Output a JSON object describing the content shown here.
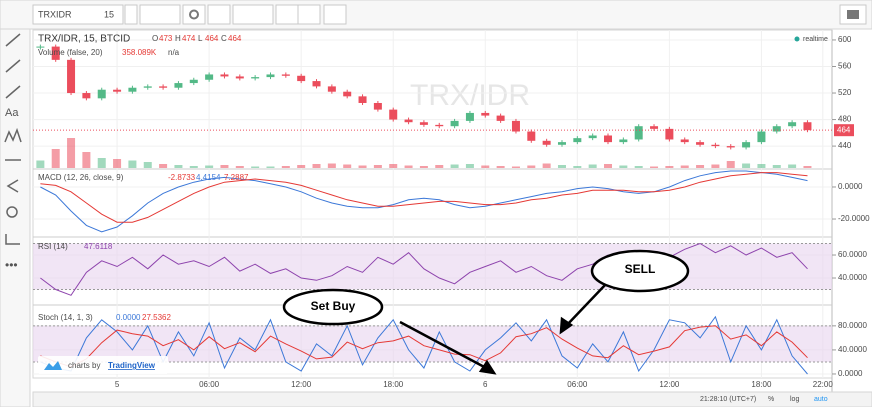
{
  "toolbar": {
    "symbol": "TRXIDR",
    "interval": "15"
  },
  "chart": {
    "type": "candlestick",
    "title": "TRX/IDR, 15, BTCID",
    "watermark": "TRX/IDR",
    "ohlc": [
      {
        "label": "O",
        "value": 473
      },
      {
        "label": "H",
        "value": 474
      },
      {
        "label": "L",
        "value": 464
      },
      {
        "label": "C",
        "value": 464
      }
    ],
    "realtime": "realtime",
    "last_price": 464,
    "x": [
      -5,
      -4,
      -3,
      -2,
      -1,
      0,
      1,
      2,
      3,
      4,
      5,
      6,
      7,
      8,
      9,
      10,
      11,
      12,
      13,
      14,
      15,
      16,
      17,
      18,
      19,
      20,
      21,
      22,
      23,
      24,
      25,
      26,
      27,
      28,
      29,
      30,
      31,
      32,
      33,
      34,
      35,
      36,
      37,
      38,
      39,
      40,
      41,
      42,
      43,
      44,
      45
    ],
    "xlim": [
      -5.48,
      46.6
    ],
    "xticks": [
      {
        "value": 0,
        "label": "5"
      },
      {
        "value": 6,
        "label": "06:00"
      },
      {
        "value": 12,
        "label": "12:00"
      },
      {
        "value": 18,
        "label": "18:00"
      },
      {
        "value": 24,
        "label": "6"
      },
      {
        "value": 30,
        "label": "06:00"
      },
      {
        "value": 36,
        "label": "12:00"
      },
      {
        "value": 42,
        "label": "18:00"
      },
      {
        "value": 46,
        "label": "22:00"
      }
    ],
    "panels": {
      "price": {
        "ylim": [
          407,
          615
        ],
        "yticks": [
          600,
          560,
          520,
          480,
          440
        ],
        "up_color": "#53b987",
        "down_color": "#eb4d5c",
        "values": [
          590,
          570,
          520,
          512,
          525,
          522,
          528,
          530,
          528,
          535,
          540,
          548,
          545,
          542,
          544,
          548,
          546,
          538,
          530,
          522,
          515,
          505,
          495,
          480,
          476,
          472,
          470,
          478,
          490,
          486,
          478,
          462,
          448,
          442,
          446,
          452,
          456,
          446,
          450,
          470,
          466,
          450,
          446,
          442,
          440,
          438,
          446,
          462,
          470,
          476,
          464
        ]
      },
      "volume": {
        "legend": "Volume (false, 20)",
        "legend_values": [
          "358.089K",
          "n/a"
        ],
        "values": [
          150,
          380,
          600,
          320,
          200,
          180,
          150,
          120,
          80,
          60,
          40,
          50,
          60,
          40,
          30,
          30,
          40,
          60,
          80,
          90,
          70,
          50,
          60,
          80,
          50,
          40,
          60,
          70,
          80,
          50,
          40,
          30,
          50,
          90,
          60,
          40,
          70,
          80,
          50,
          40,
          30,
          40,
          50,
          60,
          70,
          140,
          90,
          80,
          60,
          70,
          40
        ]
      },
      "macd": {
        "legend": "MACD (12, 26, close, 9)",
        "legend_values": [
          "-2.8733",
          "4.4154",
          "7.2887"
        ],
        "ylim": [
          -30.6,
          10.6
        ],
        "yticks": [
          {
            "value": 0,
            "label": "0.0000"
          },
          {
            "value": -20,
            "label": "-20.0000"
          }
        ],
        "series": [
          {
            "color": "#3c78d8",
            "values": [
              0,
              -5,
              -15,
              -24,
              -28,
              -25,
              -18,
              -10,
              -4,
              0,
              3,
              5,
              6,
              5,
              4,
              2,
              0,
              -3,
              -7,
              -10,
              -12,
              -13,
              -13,
              -11,
              -8,
              -7,
              -8,
              -11,
              -13,
              -12,
              -10,
              -8,
              -6,
              -4,
              -3,
              -1,
              0,
              -1,
              -3,
              -4,
              -3,
              0,
              4,
              7,
              9,
              10,
              10,
              9,
              8,
              6,
              4
            ]
          },
          {
            "color": "#e53935",
            "values": [
              2,
              1,
              -3,
              -10,
              -17,
              -22,
              -22,
              -19,
              -14,
              -9,
              -4,
              0,
              3,
              4,
              5,
              4,
              3,
              1,
              -2,
              -5,
              -8,
              -10,
              -12,
              -12,
              -11,
              -10,
              -9,
              -9,
              -10,
              -11,
              -11,
              -10,
              -8,
              -7,
              -5,
              -4,
              -2,
              -2,
              -2,
              -3,
              -3,
              -2,
              0,
              3,
              5,
              7,
              8,
              9,
              9,
              8,
              7
            ]
          }
        ]
      },
      "rsi": {
        "legend": "RSI (14)",
        "legend_values": [
          "47.6118"
        ],
        "ylim": [
          17.4,
          74.8
        ],
        "band": [
          30,
          70
        ],
        "yticks": [
          {
            "value": 60,
            "label": "60.0000"
          },
          {
            "value": 40,
            "label": "40.0000"
          }
        ],
        "series": [
          {
            "color": "#8e44ad",
            "values": [
              40,
              30,
              25,
              45,
              55,
              50,
              58,
              48,
              60,
              52,
              55,
              50,
              58,
              46,
              52,
              44,
              48,
              40,
              38,
              42,
              50,
              45,
              58,
              52,
              62,
              48,
              40,
              35,
              45,
              50,
              55,
              45,
              50,
              42,
              38,
              48,
              52,
              60,
              55,
              48,
              62,
              58,
              65,
              70,
              62,
              68,
              60,
              66,
              58,
              62,
              48
            ]
          }
        ]
      },
      "stoch": {
        "legend": "Stoch (14, 1, 3)",
        "legend_values": [
          "0.0000",
          "27.5362"
        ],
        "ylim": [
          -6.7,
          113
        ],
        "band": [
          20,
          80
        ],
        "yticks": [
          {
            "value": 80,
            "label": "80.0000"
          },
          {
            "value": 40,
            "label": "40.0000"
          },
          {
            "value": 0,
            "label": "0.0000"
          }
        ],
        "series": [
          {
            "color": "#3c78d8",
            "values": [
              20,
              10,
              5,
              60,
              90,
              70,
              40,
              80,
              20,
              70,
              30,
              85,
              10,
              60,
              40,
              90,
              20,
              5,
              50,
              30,
              80,
              15,
              60,
              90,
              40,
              10,
              70,
              20,
              5,
              40,
              60,
              85,
              55,
              90,
              30,
              10,
              50,
              20,
              70,
              5,
              40,
              90,
              85,
              60,
              95,
              20,
              80,
              40,
              90,
              30,
              0
            ]
          },
          {
            "color": "#e53935",
            "values": [
              30,
              20,
              12,
              25,
              52,
              73,
              67,
              63,
              47,
              57,
              40,
              62,
              42,
              52,
              37,
              63,
              50,
              38,
              25,
              28,
              53,
              42,
              52,
              55,
              63,
              47,
              40,
              33,
              32,
              22,
              35,
              62,
              67,
              77,
              58,
              43,
              30,
              27,
              47,
              32,
              38,
              45,
              72,
              78,
              80,
              58,
              65,
              47,
              70,
              53,
              27
            ]
          }
        ]
      }
    }
  },
  "annotations": [
    "Set Buy",
    "SELL"
  ],
  "credit": {
    "prefix": "charts by",
    "brand": "TradingView"
  },
  "footer": {
    "clock": "21:28:10 (UTC+7)",
    "percent": "%",
    "log": "log",
    "auto": "auto"
  }
}
